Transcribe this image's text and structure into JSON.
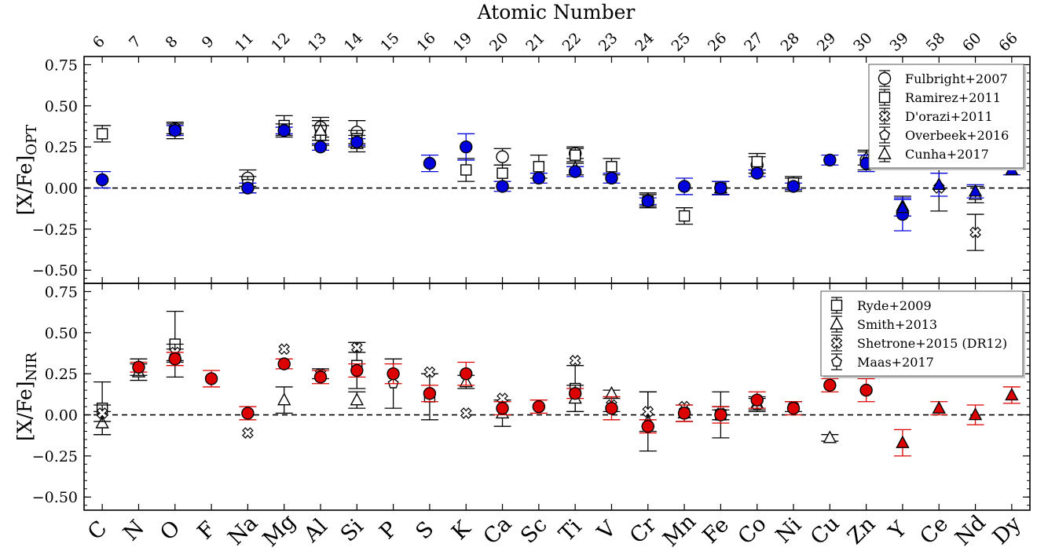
{
  "chart_data": {
    "type": "scatter",
    "top_axis_title": "Atomic Number",
    "elements": [
      "C",
      "N",
      "O",
      "F",
      "Na",
      "Mg",
      "Al",
      "Si",
      "P",
      "S",
      "K",
      "Ca",
      "Sc",
      "Ti",
      "V",
      "Cr",
      "Mn",
      "Fe",
      "Co",
      "Ni",
      "Cu",
      "Zn",
      "Y",
      "Ce",
      "Nd",
      "Dy"
    ],
    "atomic_numbers": [
      "6",
      "7",
      "8",
      "9",
      "11",
      "12",
      "13",
      "14",
      "15",
      "16",
      "19",
      "20",
      "21",
      "22",
      "23",
      "24",
      "25",
      "26",
      "27",
      "28",
      "29",
      "30",
      "39",
      "58",
      "60",
      "66"
    ],
    "y_ticks": [
      "0.75",
      "0.50",
      "0.25",
      "0.00",
      "−0.25",
      "−0.50"
    ],
    "ylim": [
      -0.58,
      0.8
    ],
    "grid": false,
    "reference_line": 0.0,
    "panels": [
      {
        "id": "opt",
        "ylabel": "[X/Fe]",
        "ylabel_sub": "OPT",
        "this_work": {
          "color": "#0000dd",
          "circles": [
            [
              0,
              0.05,
              0.05
            ],
            [
              2,
              0.35,
              0.03
            ],
            [
              4,
              0.0,
              0.03
            ],
            [
              5,
              0.35,
              0.02
            ],
            [
              6,
              0.25,
              0.02
            ],
            [
              7,
              0.28,
              0.02
            ],
            [
              9,
              0.15,
              0.05
            ],
            [
              10,
              0.25,
              0.08
            ],
            [
              11,
              0.01,
              0.03
            ],
            [
              12,
              0.06,
              0.03
            ],
            [
              13,
              0.1,
              0.03
            ],
            [
              14,
              0.06,
              0.03
            ],
            [
              15,
              -0.08,
              0.02
            ],
            [
              16,
              0.01,
              0.05
            ],
            [
              17,
              0.0,
              0.04
            ],
            [
              18,
              0.09,
              0.02
            ],
            [
              19,
              0.01,
              0.02
            ],
            [
              20,
              0.17,
              0.03
            ],
            [
              21,
              0.15,
              0.05
            ],
            [
              22,
              -0.16,
              0.1
            ]
          ],
          "triangles": [
            [
              22,
              -0.12,
              0.05
            ],
            [
              23,
              0.02,
              0.07
            ],
            [
              24,
              -0.02,
              0.04
            ],
            [
              25,
              0.11,
              0.03
            ]
          ]
        },
        "legend": [
          "Fulbright+2007",
          "Ramirez+2011",
          "D'orazi+2011",
          "Overbeek+2016",
          "Cunha+2017"
        ],
        "literature": [
          {
            "marker": "circle",
            "points": [
              [
                2,
                0.36,
                0.03
              ],
              [
                4,
                0.06,
                0.05
              ],
              [
                6,
                0.37,
                0.06
              ],
              [
                7,
                0.34,
                0.07
              ],
              [
                11,
                0.19,
                0.05
              ],
              [
                13,
                0.21,
                0.03
              ],
              [
                17,
                0.0,
                0.04
              ],
              [
                18,
                0.14,
                0.05
              ],
              [
                19,
                0.02,
                0.04
              ],
              [
                21,
                0.17,
                0.06
              ]
            ]
          },
          {
            "marker": "square",
            "points": [
              [
                0,
                0.33,
                0.05
              ],
              [
                2,
                0.35,
                0.05
              ],
              [
                4,
                0.02,
                0.05
              ],
              [
                5,
                0.38,
                0.06
              ],
              [
                6,
                0.32,
                0.06
              ],
              [
                7,
                0.3,
                0.05
              ],
              [
                10,
                0.11,
                0.07
              ],
              [
                11,
                0.09,
                0.05
              ],
              [
                12,
                0.13,
                0.07
              ],
              [
                13,
                0.2,
                0.05
              ],
              [
                14,
                0.13,
                0.05
              ],
              [
                15,
                -0.08,
                0.04
              ],
              [
                16,
                -0.17,
                0.05
              ],
              [
                17,
                0.0,
                0.04
              ],
              [
                18,
                0.16,
                0.05
              ],
              [
                19,
                0.03,
                0.04
              ]
            ]
          },
          {
            "marker": "cross",
            "points": [
              [
                23,
                0.0,
                0.14
              ],
              [
                24,
                -0.27,
                0.11
              ]
            ]
          },
          {
            "marker": "pentagon",
            "points": [
              [
                17,
                0.0,
                0.04
              ]
            ]
          },
          {
            "marker": "triangle",
            "points": [
              [
                2,
                0.36,
                0.04
              ],
              [
                5,
                0.35,
                0.04
              ],
              [
                6,
                0.35,
                0.06
              ],
              [
                7,
                0.27,
                0.05
              ],
              [
                13,
                0.12,
                0.04
              ],
              [
                15,
                -0.07,
                0.04
              ],
              [
                17,
                0.0,
                0.04
              ],
              [
                21,
                0.18,
                0.04
              ],
              [
                22,
                -0.11,
                0.06
              ],
              [
                24,
                -0.04,
                0.05
              ]
            ]
          }
        ]
      },
      {
        "id": "nir",
        "ylabel": "[X/Fe]",
        "ylabel_sub": "NIR",
        "this_work": {
          "color": "#dd0000",
          "circles": [
            [
              1,
              0.29,
              0.03
            ],
            [
              2,
              0.34,
              0.04
            ],
            [
              3,
              0.22,
              0.05
            ],
            [
              4,
              0.01,
              0.04
            ],
            [
              5,
              0.31,
              0.03
            ],
            [
              6,
              0.23,
              0.04
            ],
            [
              7,
              0.27,
              0.04
            ],
            [
              8,
              0.25,
              0.06
            ],
            [
              9,
              0.13,
              0.05
            ],
            [
              10,
              0.25,
              0.07
            ],
            [
              11,
              0.04,
              0.04
            ],
            [
              12,
              0.05,
              0.04
            ],
            [
              13,
              0.13,
              0.03
            ],
            [
              14,
              0.04,
              0.07
            ],
            [
              15,
              -0.07,
              0.04
            ],
            [
              16,
              0.01,
              0.05
            ],
            [
              17,
              0.0,
              0.05
            ],
            [
              18,
              0.09,
              0.05
            ],
            [
              19,
              0.04,
              0.04
            ],
            [
              20,
              0.18,
              0.04
            ],
            [
              21,
              0.15,
              0.07
            ]
          ],
          "triangles": [
            [
              22,
              -0.17,
              0.08
            ],
            [
              23,
              0.04,
              0.04
            ],
            [
              24,
              0.0,
              0.06
            ],
            [
              25,
              0.12,
              0.05
            ]
          ]
        },
        "legend": [
          "Ryde+2009",
          "Smith+2013",
          "Shetrone+2015 (DR12)",
          "Maas+2017"
        ],
        "literature": [
          {
            "marker": "square",
            "points": [
              [
                0,
                0.04,
                0.16
              ],
              [
                2,
                0.43,
                0.2
              ],
              [
                7,
                0.3,
                0.14
              ],
              [
                9,
                0.11,
                0.14
              ],
              [
                13,
                0.16,
                0.14
              ],
              [
                17,
                0.0,
                0.14
              ]
            ]
          },
          {
            "marker": "triangle",
            "points": [
              [
                0,
                -0.05,
                0.07
              ],
              [
                1,
                0.26,
                0.05
              ],
              [
                2,
                0.36,
                0.04
              ],
              [
                5,
                0.09,
                0.08
              ],
              [
                7,
                0.09,
                0.05
              ],
              [
                10,
                0.2,
                0.04
              ],
              [
                11,
                0.01,
                0.08
              ],
              [
                13,
                0.1,
                0.08
              ],
              [
                14,
                0.13,
                0.02
              ],
              [
                15,
                -0.04,
                0.18
              ],
              [
                16,
                0.01,
                0.05
              ],
              [
                18,
                0.07,
                0.04
              ],
              [
                20,
                -0.14,
                0.02
              ]
            ]
          },
          {
            "marker": "cross",
            "points": [
              [
                0,
                0.01,
                0.05
              ],
              [
                1,
                0.29,
                0.05
              ],
              [
                2,
                0.38,
                0.05
              ],
              [
                4,
                -0.11,
                0.0
              ],
              [
                5,
                0.4,
                0.0
              ],
              [
                6,
                0.25,
                0.03
              ],
              [
                7,
                0.41,
                0.03
              ],
              [
                9,
                0.26,
                0.0
              ],
              [
                10,
                0.01,
                0.0
              ],
              [
                11,
                0.1,
                0.0
              ],
              [
                13,
                0.33,
                0.0
              ],
              [
                14,
                0.06,
                0.04
              ],
              [
                15,
                0.02,
                0.12
              ],
              [
                16,
                0.05,
                0.0
              ],
              [
                17,
                0.01,
                0.04
              ],
              [
                18,
                0.06,
                0.04
              ],
              [
                19,
                0.05,
                0.03
              ]
            ]
          },
          {
            "marker": "pentagon",
            "points": [
              [
                8,
                0.19,
                0.15
              ],
              [
                17,
                0.0,
                0.03
              ]
            ]
          }
        ]
      }
    ]
  }
}
